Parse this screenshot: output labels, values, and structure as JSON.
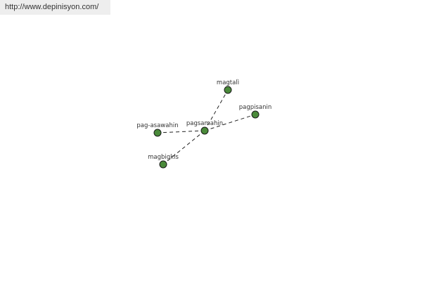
{
  "header": {
    "url": "http://www.depinisyon.com/"
  },
  "graph": {
    "center": "pagsamahin",
    "nodes": [
      {
        "id": "pagsamahin",
        "label": "pagsamahin"
      },
      {
        "id": "magtali",
        "label": "magtalì"
      },
      {
        "id": "pagpisanin",
        "label": "pagpisanin"
      },
      {
        "id": "pag-asawahin",
        "label": "pag-asawahin"
      },
      {
        "id": "magbigkis",
        "label": "magbigkis"
      }
    ],
    "edges": [
      [
        "pagsamahin",
        "magtali"
      ],
      [
        "pagsamahin",
        "pagpisanin"
      ],
      [
        "pagsamahin",
        "pag-asawahin"
      ],
      [
        "pagsamahin",
        "magbigkis"
      ]
    ],
    "node_color": "#4a8a3a",
    "edge_style": "dashed"
  }
}
